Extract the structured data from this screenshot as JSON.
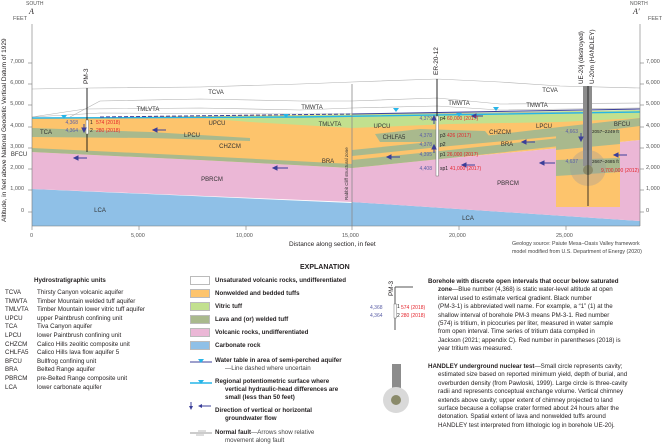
{
  "section": {
    "south_label": "SOUTH",
    "south_letter": "A",
    "north_label": "NORTH",
    "north_letter": "A′",
    "feet_left": "FEET",
    "feet_right": "FEET",
    "y_axis_label": "Altitude, in feet above National Geodetic Vertical Datum of 1929",
    "x_axis_label": "Distance along section, in feet",
    "y_ticks": [
      "7,000",
      "6,000",
      "5,000",
      "4,000",
      "3,000",
      "2,000",
      "1,000",
      "0"
    ],
    "x_ticks": [
      "0",
      "5,000",
      "10,000",
      "15,000",
      "20,000",
      "25,000"
    ],
    "source_line1": "Geology source: Paiute Mesa–Oasis Valley framework",
    "source_line2": "model modified from U.S. Department of Energy (2020)",
    "fault_label": "Rabbit Cliff structural zone",
    "unit_labels": {
      "tcva_1": "TCVA",
      "tcva_2": "TCVA",
      "tmlvta_1": "TMLVTA",
      "tmlvta_2": "TMLVTA",
      "tmwta_1": "TMWTA",
      "tmwta_2": "TMWTA",
      "tmwta_3": "TMWTA",
      "upcu_1": "UPCU",
      "upcu_2": "UPCU",
      "tca": "TCA",
      "lpcu_1": "LPCU",
      "lpcu_2": "LPCU",
      "chzcm_1": "CHZCM",
      "chzcm_2": "CHZCM",
      "chlfa5": "CHLFA5",
      "bfcu_1": "BFCU",
      "bfcu_2": "BFCU",
      "bra_1": "BRA",
      "bra_2": "BRA",
      "pbrcm_1": "PBRCM",
      "pbrcm_2": "PBRCM",
      "lca_1": "LCA",
      "lca_2": "LCA"
    },
    "boreholes": {
      "pm3": {
        "name": "PM-3",
        "intervals": [
          {
            "water_level": "4,368",
            "id": "1",
            "tritium": "574 (2018)"
          },
          {
            "water_level": "4,364",
            "id": "2",
            "tritium": "280 (2018)"
          }
        ]
      },
      "er2012": {
        "name": "ER-20-12",
        "intervals": [
          {
            "water_level": "4,379",
            "id": "p4",
            "tritium": "60,000 (2017)"
          },
          {
            "water_level": "4,378",
            "id": "p3",
            "tritium": "426 (2017)"
          },
          {
            "water_level": "4,378",
            "id": "p2",
            "tritium": ""
          },
          {
            "water_level": "4,395",
            "id": "p1",
            "tritium": "26,000 (2017)"
          },
          {
            "water_level": "4,408",
            "id": "sp1",
            "tritium": "41,000 (2017)"
          }
        ]
      },
      "handley": {
        "name1": "UE-20j (destroyed)",
        "name2": "U-20m (HANDLEY)",
        "intervals": [
          {
            "water_level": "4,663",
            "depth": "2057–2249 ft",
            "tritium": ""
          },
          {
            "water_level": "4,637",
            "depth": "2667–2685 ft",
            "tritium": "9,700,000 (2012)"
          }
        ]
      }
    }
  },
  "units_list": {
    "title": "Hydrostratigraphic units",
    "items": [
      {
        "abbr": "TCVA",
        "name": "Thirsty Canyon volcanic aquifer"
      },
      {
        "abbr": "TMWTA",
        "name": "Timber Mountain welded tuff aquifer"
      },
      {
        "abbr": "TMLVTA",
        "name": "Timber Mountain lower vitric tuff aquifer"
      },
      {
        "abbr": "UPCU",
        "name": "upper Paintbrush confining unit"
      },
      {
        "abbr": "TCA",
        "name": "Tiva Canyon aquifer"
      },
      {
        "abbr": "LPCU",
        "name": "lower Paintbrush confining unit"
      },
      {
        "abbr": "CHZCM",
        "name": "Calico Hills zeolitic composite unit"
      },
      {
        "abbr": "CHLFA5",
        "name": "Calico Hills lava flow aquifer 5"
      },
      {
        "abbr": "BFCU",
        "name": "Bullfrog confining unit"
      },
      {
        "abbr": "BRA",
        "name": "Belted Range aquifer"
      },
      {
        "abbr": "PBRCM",
        "name": "pre-Belted Range composite unit"
      },
      {
        "abbr": "LCA",
        "name": "lower carbonate aquifer"
      }
    ]
  },
  "explanation": {
    "title": "EXPLANATION",
    "swatches": [
      {
        "label": "Unsaturated volcanic rocks, undifferentiated",
        "color": "#ffffff"
      },
      {
        "label": "Nonwelded and bedded tuffs",
        "color": "#fdc46c"
      },
      {
        "label": "Vitric tuff",
        "color": "#c2e08e"
      },
      {
        "label": "Lava and (or) welded tuff",
        "color": "#a9b98d"
      },
      {
        "label": "Volcanic rocks,  undifferentiated",
        "color": "#ebb7d6"
      },
      {
        "label": "Carbonate rock",
        "color": "#8fc0e7"
      }
    ],
    "water_table": {
      "bold": "Water table in area of semi-perched aquifer",
      "rest": "—Line dashed where uncertain",
      "color": "#3b3f99"
    },
    "potentiometric": {
      "line1": "Regional potentiometric surface where",
      "line2": "vertical hydraulic-head differences are",
      "line3": "small (less than 50 feet)",
      "color": "#26b5e8"
    },
    "flow": {
      "line1": "Direction of vertical or horizontal",
      "line2": "groundwater flow"
    },
    "fault": {
      "bold": "Normal fault",
      "rest": "—Arrows show relative",
      "line2": "movement along fault"
    },
    "borehole_example": {
      "name": "PM-3",
      "intervals": [
        {
          "water_level": "4,368",
          "id": "1",
          "tritium": "574 (2018)"
        },
        {
          "water_level": "4,364",
          "id": "2",
          "tritium": "280 (2018)"
        }
      ]
    },
    "borehole_text": {
      "bold1": "Borehole with discrete open intervals that occur below saturated",
      "bold2": "zone",
      "l1": "—Blue number (4,368) is static water-level altitude at open",
      "l2": "interval used to estimate vertical gradient. Black number",
      "l3": "(PM-3-1) is abbreviated well name. For example, a “1” (1) at the",
      "l4": "shallow interval of borehole PM-3 means PM-3-1. Red number",
      "l5": "(574) is tritium, in picocuries per liter, measured in water sample",
      "l6": "from open interval. Time series of tritium data compiled in",
      "l7": "Jackson (2021; appendix C). Red number in parentheses (2018) is",
      "l8": "year tritium was measured."
    },
    "handley_text": {
      "bold": "HANDLEY underground nuclear test",
      "l1": "—Small circle represents cavity;",
      "l2": "estimated size based on reported minimum yield, depth of burial, and",
      "l3": "overburden density (from Pawloski, 1999). Large circle is three-cavity",
      "l4": "radii and represents conceptual exchange volume. Vertical chimney",
      "l5": "extends above cavity; upper extent of chimney projected to land",
      "l6": "surface because a collapse crater formed about 24 hours after the",
      "l7": "detonation. Spatial extent of lava and nonwelded tuffs around",
      "l8": "HANDLEY test interpreted from lithologic log in borehole UE-20j."
    }
  }
}
